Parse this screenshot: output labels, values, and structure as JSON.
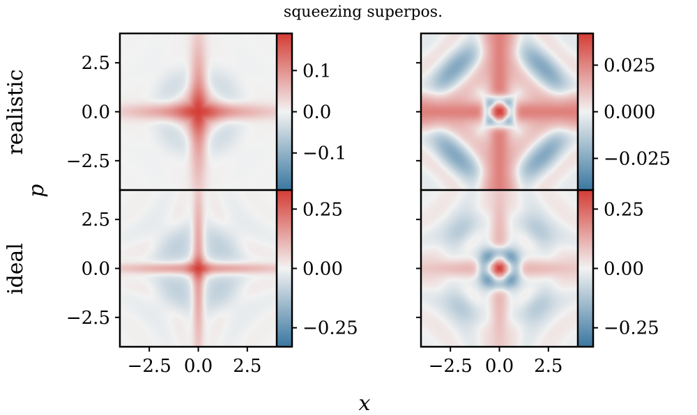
{
  "chart_data": {
    "type": "heatmap",
    "title": "squeezing superpos.",
    "xlabel": "x",
    "ylabel": "p",
    "row_labels": [
      "realistic",
      "ideal"
    ],
    "xlim": [
      -4,
      4
    ],
    "ylim": [
      -4,
      4
    ],
    "x_ticks": [
      -2.5,
      0.0,
      2.5
    ],
    "x_tick_labels": [
      "−2.5",
      "0.0",
      "2.5"
    ],
    "y_ticks": [
      2.5,
      0.0,
      -2.5
    ],
    "y_tick_labels": [
      "2.5",
      "0.0",
      "−2.5"
    ],
    "colormap": {
      "negative": "#3a77a0",
      "zero": "#f2f2f2",
      "positive": "#d43c35"
    },
    "panels": [
      {
        "id": "realistic-left",
        "row": 0,
        "col": 0,
        "vmin": -0.19,
        "vmax": 0.19,
        "colorbar_ticks": [
          0.1,
          0.0,
          -0.1
        ],
        "colorbar_tick_labels": [
          "0.1",
          "0.0",
          "−0.1"
        ],
        "pattern": {
          "cross_amp": 0.8,
          "cross_width": 0.28,
          "cross_decay": 0.28,
          "center_amp": 0.9,
          "center_r": 0.75,
          "neg_amp": 0.25,
          "neg_r": 1.8,
          "neg_dr": 0.55,
          "ring_amp": 0.1,
          "ring_k": 3.5,
          "ring_decay": 0.3
        }
      },
      {
        "id": "realistic-right",
        "row": 0,
        "col": 1,
        "vmin": -0.042,
        "vmax": 0.042,
        "colorbar_ticks": [
          0.025,
          0.0,
          -0.025
        ],
        "colorbar_tick_labels": [
          "0.025",
          "0.000",
          "−0.025"
        ],
        "pattern": {
          "cross_amp": 1.0,
          "cross_width": 0.55,
          "cross_decay": 0.0,
          "center_amp": 0.6,
          "center_r": 0.35,
          "ring0_amp": -1.3,
          "ring0_r": 0.6,
          "ring0_dr": 0.22,
          "neg_amp": 0.75,
          "neg_r": 3.2,
          "neg_dr": 0.45,
          "ring_amp": 0.35,
          "ring_k": 4.2,
          "ring_decay": 0.1
        }
      },
      {
        "id": "ideal-left",
        "row": 1,
        "col": 0,
        "vmin": -0.33,
        "vmax": 0.33,
        "colorbar_ticks": [
          0.25,
          0.0,
          -0.25
        ],
        "colorbar_tick_labels": [
          "0.25",
          "0.00",
          "−0.25"
        ],
        "pattern": {
          "cross_amp": 0.55,
          "cross_width": 0.18,
          "cross_decay": 0.2,
          "center_amp": 0.75,
          "center_r": 0.35,
          "neg_amp": 0.3,
          "neg_r": 1.9,
          "neg_dr": 0.5,
          "ring_amp": 0.18,
          "ring_k": 3.8,
          "ring_decay": 0.22
        }
      },
      {
        "id": "ideal-right",
        "row": 1,
        "col": 1,
        "vmin": -0.33,
        "vmax": 0.33,
        "colorbar_ticks": [
          0.25,
          0.0,
          -0.25
        ],
        "colorbar_tick_labels": [
          "0.25",
          "0.00",
          "−0.25"
        ],
        "pattern": {
          "cross_amp": 0.45,
          "cross_width": 0.4,
          "cross_decay": 0.12,
          "center_amp": 1.0,
          "center_r": 0.22,
          "ring0_amp": -0.9,
          "ring0_r": 0.8,
          "ring0_dr": 0.25,
          "neg_amp": 0.45,
          "neg_r": 2.6,
          "neg_dr": 0.45,
          "ring_amp": 0.3,
          "ring_k": 4.0,
          "ring_decay": 0.15
        }
      }
    ]
  }
}
